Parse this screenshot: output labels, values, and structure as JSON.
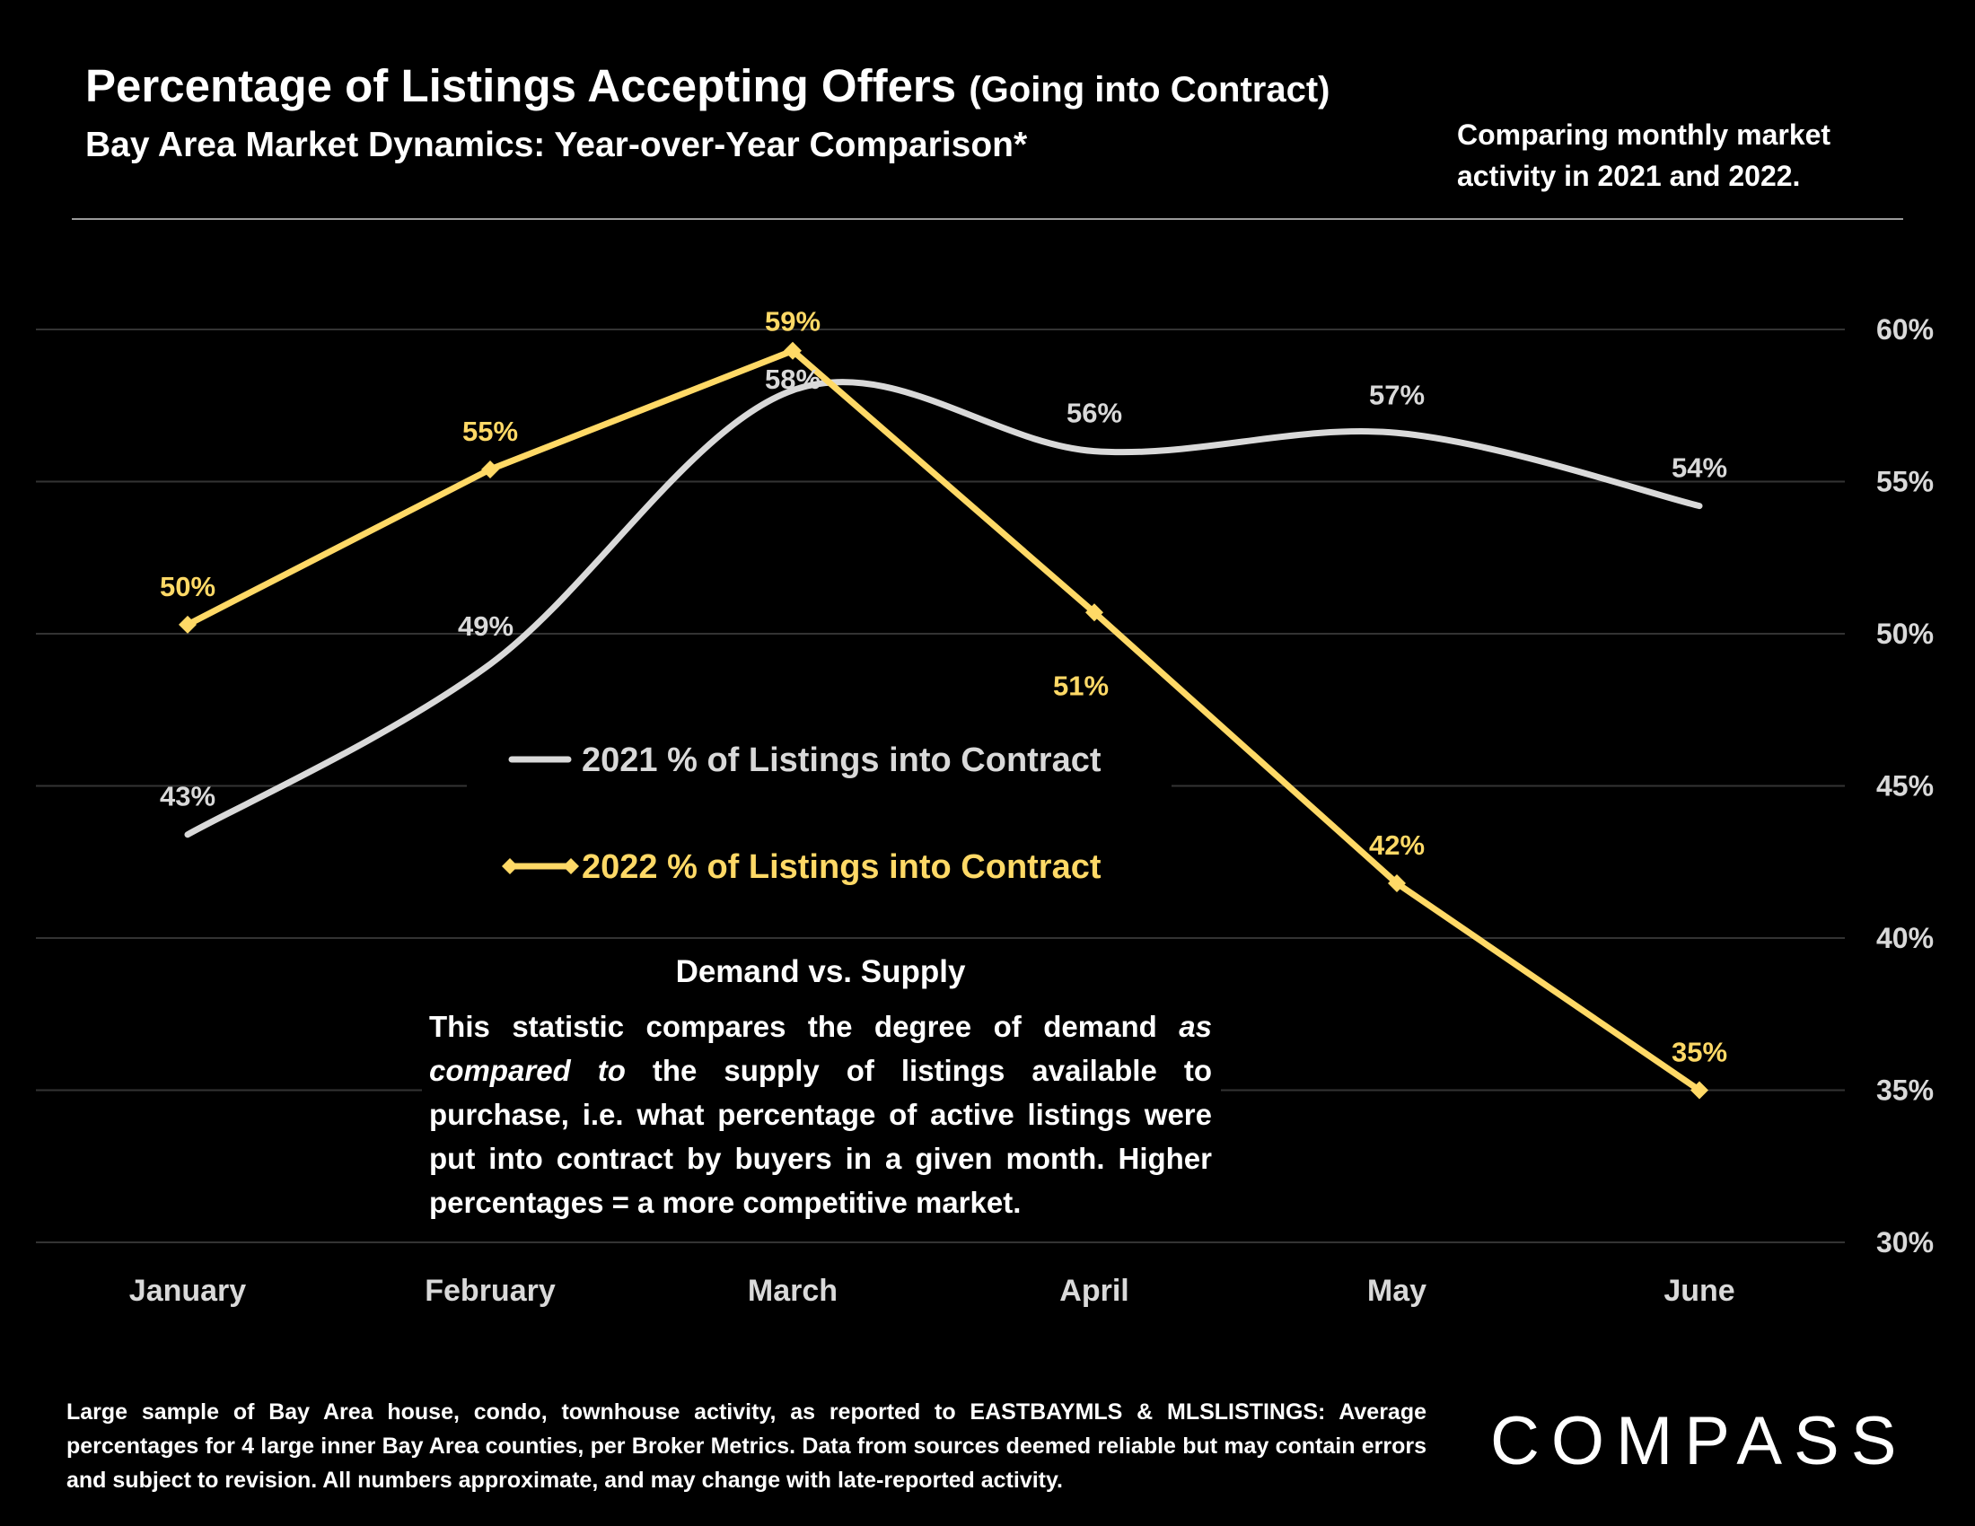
{
  "header": {
    "title": "Percentage of Listings Accepting Offers",
    "title_suffix": "(Going into Contract)",
    "subtitle": "Bay Area Market Dynamics: Year-over-Year Comparison*",
    "side_note": "Comparing monthly market activity in 2021 and 2022."
  },
  "explainer": {
    "heading": "Demand vs. Supply",
    "text_before_italic": "This statistic compares the degree of demand ",
    "italic": "as compared to",
    "text_after_italic": " the supply of listings available to purchase, i.e. what percentage of active listings were put into contract by buyers in a given month. Higher percentages = a more competitive market."
  },
  "footnote": "Large sample of Bay Area house, condo, townhouse activity, as reported to EASTBAYMLS & MLSLISTINGS: Average percentages for 4 large inner Bay Area counties, per Broker Metrics. Data from sources deemed reliable but may contain errors and subject to revision. All numbers approximate, and may change with late-reported activity.",
  "brand": "COMPASS",
  "colors": {
    "background": "#000000",
    "series_2021": "#d9d9d9",
    "series_2022": "#ffd966",
    "grid": "#333333"
  },
  "chart_data": {
    "type": "line",
    "categories": [
      "January",
      "February",
      "March",
      "April",
      "May",
      "June"
    ],
    "ylim": [
      30,
      60
    ],
    "yticks": [
      30,
      35,
      40,
      45,
      50,
      55,
      60
    ],
    "ytick_labels": [
      "30%",
      "35%",
      "40%",
      "45%",
      "50%",
      "55%",
      "60%"
    ],
    "y_axis_position": "right",
    "grid": true,
    "legend_position": "center",
    "series": [
      {
        "name": "2021 % of Listings into Contract",
        "values": [
          43.4,
          49.0,
          58.0,
          56.0,
          56.6,
          54.2
        ],
        "labels": [
          "43%",
          "49%",
          "58%",
          "56%",
          "57%",
          "54%"
        ],
        "color": "#d9d9d9",
        "smooth": true,
        "marker": "none"
      },
      {
        "name": "2022 % of Listings into Contract",
        "values": [
          50.3,
          55.4,
          59.3,
          50.7,
          41.8,
          35.0
        ],
        "labels": [
          "50%",
          "55%",
          "59%",
          "51%",
          "42%",
          "35%"
        ],
        "color": "#ffd966",
        "smooth": false,
        "marker": "diamond"
      }
    ]
  }
}
